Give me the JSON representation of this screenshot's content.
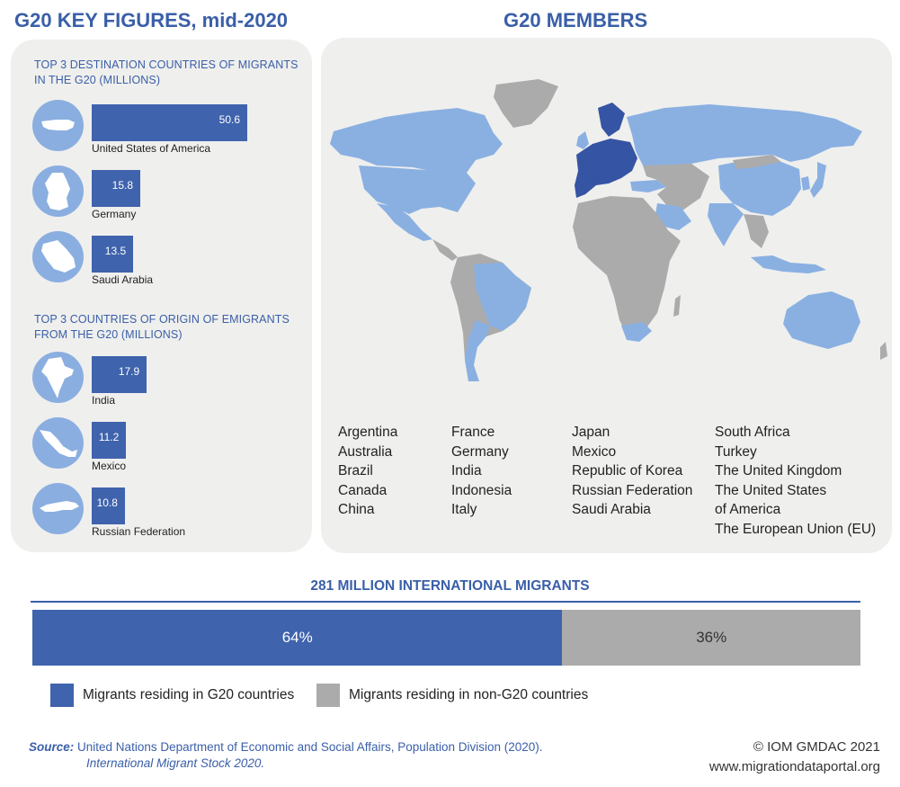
{
  "left_title": "G20 KEY FIGURES, mid-2020",
  "right_title": "G20 MEMBERS",
  "colors": {
    "accent": "#3a5fa8",
    "bar": "#3f63ad",
    "g20_light": "#8ab0e2",
    "eu": "#3554a3",
    "non_g20": "#ababab",
    "panel": "#efefed"
  },
  "chart_data": [
    {
      "type": "bar",
      "orientation": "horizontal",
      "title": "TOP 3 DESTINATION COUNTRIES OF MIGRANTS IN THE G20 (MILLIONS)",
      "categories": [
        "United States of America",
        "Germany",
        "Saudi Arabia"
      ],
      "values": [
        50.6,
        15.8,
        13.5
      ],
      "icons": [
        "usa-silhouette-icon",
        "germany-silhouette-icon",
        "saudi-arabia-silhouette-icon"
      ]
    },
    {
      "type": "bar",
      "orientation": "horizontal",
      "title": "TOP 3 COUNTRIES OF ORIGIN OF EMIGRANTS FROM THE G20 (MILLIONS)",
      "categories": [
        "India",
        "Mexico",
        "Russian Federation"
      ],
      "values": [
        17.9,
        11.2,
        10.8
      ],
      "icons": [
        "india-silhouette-icon",
        "mexico-silhouette-icon",
        "russia-silhouette-icon"
      ]
    },
    {
      "type": "bar",
      "orientation": "stacked-horizontal",
      "title": "281 MILLION INTERNATIONAL MIGRANTS",
      "categories": [
        "Migrants residing in G20 countries",
        "Migrants residing in non-G20 countries"
      ],
      "values": [
        64,
        36
      ],
      "value_labels": [
        "64%",
        "36%"
      ],
      "colors": [
        "#3f63ad",
        "#ababab"
      ]
    }
  ],
  "members": {
    "columns": [
      [
        "Argentina",
        "Australia",
        "Brazil",
        "Canada",
        "China"
      ],
      [
        "France",
        "Germany",
        "India",
        "Indonesia",
        "Italy"
      ],
      [
        "Japan",
        "Mexico",
        "Republic of Korea",
        "Russian Federation",
        "Saudi Arabia"
      ],
      [
        "South Africa",
        "Turkey",
        "The United Kingdom",
        "The United States",
        "of America",
        "The European Union (EU)"
      ]
    ]
  },
  "map": {
    "icon": "world-map-icon"
  },
  "source": {
    "label": "Source:",
    "line1": "United Nations Department of Economic and Social Affairs, Population Division (2020).",
    "line2": "International Migrant Stock 2020."
  },
  "credit": {
    "copyright": "© IOM GMDAC 2021",
    "website": "www.migrationdataportal.org"
  }
}
